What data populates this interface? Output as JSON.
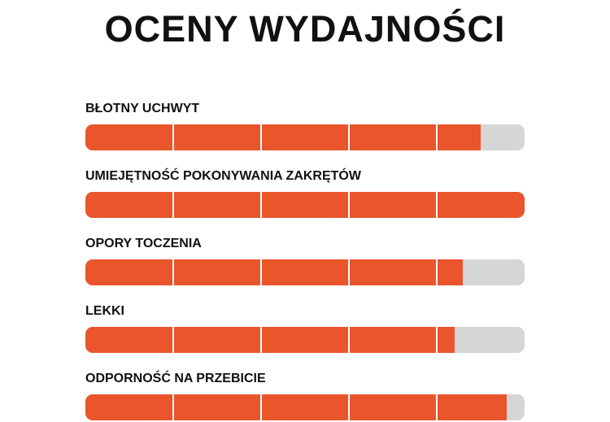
{
  "title": "OCENY WYDAJNOŚCI",
  "colors": {
    "fill": "#EA552B",
    "track": "#D6D6D6"
  },
  "chart_data": {
    "type": "bar",
    "orientation": "horizontal",
    "segments": 5,
    "scale": [
      0,
      5
    ],
    "categories": [
      "BŁOTNY UCHWYT",
      "UMIEJĘTNOŚĆ POKONYWANIA ZAKRĘTÓW",
      "OPORY TOCZENIA",
      "LEKKI",
      "ODPORNOŚĆ NA PRZEBICIE"
    ],
    "values": [
      4.5,
      5.0,
      4.3,
      4.2,
      4.8
    ]
  }
}
